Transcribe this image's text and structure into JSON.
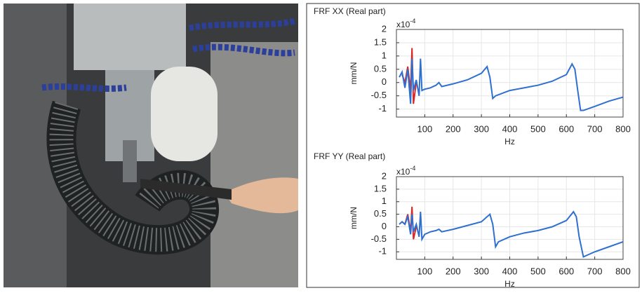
{
  "chart_data": [
    {
      "type": "line",
      "title": "FRF XX (Real part)",
      "exponent": {
        "base": "x10",
        "power": "-4"
      },
      "ylabel": "mm/N",
      "xlabel": "Hz",
      "xlim": [
        0,
        800
      ],
      "xticks": [
        100,
        200,
        300,
        400,
        500,
        600,
        700,
        800
      ],
      "ylim": [
        -1.3,
        2
      ],
      "yticks": [
        -1,
        -0.5,
        0,
        0.5,
        1,
        1.5,
        2
      ],
      "grid": true,
      "series": [
        {
          "color": "#2f6fd0",
          "x": [
            10,
            20,
            30,
            40,
            50,
            55,
            60,
            70,
            80,
            85,
            90,
            100,
            120,
            140,
            150,
            160,
            200,
            250,
            300,
            320,
            330,
            340,
            350,
            400,
            450,
            500,
            550,
            600,
            620,
            630,
            640,
            650,
            660,
            700,
            750,
            800
          ],
          "values": [
            0.2,
            0.4,
            -0.2,
            0.5,
            -0.8,
            0.9,
            -0.3,
            0.1,
            -0.5,
            0.9,
            -0.3,
            -0.25,
            -0.2,
            -0.1,
            0,
            -0.15,
            -0.05,
            0.1,
            0.35,
            0.6,
            0.2,
            -0.6,
            -0.5,
            -0.3,
            -0.2,
            -0.1,
            0.05,
            0.3,
            0.7,
            0.5,
            -0.3,
            -1.05,
            -1.05,
            -0.9,
            -0.7,
            -0.55
          ]
        },
        {
          "color": "#d62a2a",
          "x": [
            20,
            30,
            40,
            50,
            55,
            60,
            70
          ],
          "values": [
            0.3,
            0,
            0.6,
            -0.3,
            1.3,
            -0.8,
            0
          ]
        }
      ]
    },
    {
      "type": "line",
      "title": "FRF YY (Real part)",
      "exponent": {
        "base": "x10",
        "power": "-4"
      },
      "ylabel": "mm/N",
      "xlabel": "Hz",
      "xlim": [
        0,
        800
      ],
      "xticks": [
        100,
        200,
        300,
        400,
        500,
        600,
        700,
        800
      ],
      "ylim": [
        -1.3,
        2
      ],
      "yticks": [
        -1,
        -0.5,
        0,
        0.5,
        1,
        1.5,
        2
      ],
      "grid": true,
      "series": [
        {
          "color": "#2f6fd0",
          "x": [
            10,
            20,
            30,
            40,
            50,
            55,
            60,
            70,
            80,
            85,
            90,
            100,
            120,
            140,
            150,
            160,
            200,
            250,
            300,
            330,
            340,
            350,
            360,
            400,
            450,
            500,
            550,
            600,
            625,
            635,
            645,
            660,
            670,
            700,
            750,
            800
          ],
          "values": [
            0.1,
            0.2,
            0.1,
            0.4,
            -0.3,
            0.5,
            -0.2,
            0.1,
            -0.4,
            0.6,
            -0.5,
            -0.3,
            -0.2,
            -0.15,
            -0.1,
            -0.2,
            -0.1,
            0.05,
            0.2,
            0.5,
            0.1,
            -0.8,
            -0.6,
            -0.4,
            -0.25,
            -0.15,
            0,
            0.25,
            0.6,
            0.4,
            -0.4,
            -1.2,
            -1.15,
            -1.0,
            -0.8,
            -0.6
          ]
        },
        {
          "color": "#d62a2a",
          "x": [
            20,
            30,
            40,
            50,
            55,
            60,
            70
          ],
          "values": [
            0.2,
            0.1,
            0.5,
            -0.2,
            0.8,
            -0.5,
            0
          ]
        }
      ]
    }
  ]
}
